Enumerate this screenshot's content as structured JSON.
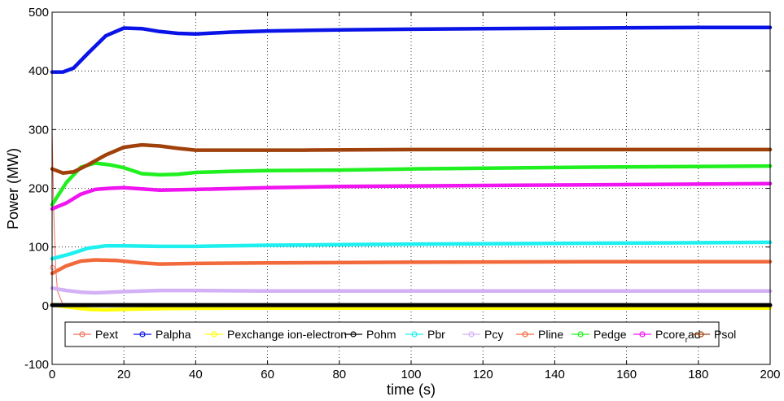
{
  "chart_data": {
    "type": "line",
    "title": "",
    "xlabel": "time (s)",
    "ylabel": "Power (MW)",
    "xlim": [
      0,
      200
    ],
    "ylim": [
      -100,
      500
    ],
    "xticks": [
      "0",
      "20",
      "40",
      "60",
      "80",
      "100",
      "120",
      "140",
      "160",
      "180",
      "200"
    ],
    "yticks": [
      "-100",
      "0",
      "100",
      "200",
      "300",
      "400",
      "500"
    ],
    "grid": true,
    "legend_position": "bottom",
    "series": [
      {
        "name": "Pext",
        "color": "#f0705a",
        "points": [
          [
            0,
            300
          ],
          [
            0.5,
            150
          ],
          [
            1,
            65
          ],
          [
            1.5,
            25
          ],
          [
            3,
            2
          ],
          [
            6,
            0
          ],
          [
            200,
            0
          ]
        ]
      },
      {
        "name": "Palpha",
        "color": "#0a14e6",
        "points": [
          [
            0,
            398
          ],
          [
            3,
            398
          ],
          [
            6,
            405
          ],
          [
            10,
            430
          ],
          [
            15,
            460
          ],
          [
            20,
            473
          ],
          [
            25,
            472
          ],
          [
            30,
            467
          ],
          [
            35,
            464
          ],
          [
            40,
            463
          ],
          [
            50,
            466
          ],
          [
            60,
            468
          ],
          [
            80,
            470
          ],
          [
            100,
            471
          ],
          [
            120,
            472
          ],
          [
            150,
            473
          ],
          [
            180,
            474
          ],
          [
            200,
            474
          ]
        ]
      },
      {
        "name": "Pexchange ion-electron",
        "color": "#ffff00",
        "points": [
          [
            0,
            2
          ],
          [
            4,
            -2
          ],
          [
            10,
            -6
          ],
          [
            15,
            -7
          ],
          [
            20,
            -6
          ],
          [
            30,
            -5
          ],
          [
            50,
            -4
          ],
          [
            100,
            -4
          ],
          [
            200,
            -4
          ]
        ]
      },
      {
        "name": "Pohm",
        "color": "#000000",
        "points": [
          [
            0,
            1
          ],
          [
            50,
            1
          ],
          [
            100,
            1
          ],
          [
            200,
            1
          ]
        ]
      },
      {
        "name": "Pbr",
        "color": "#1ef0f0",
        "points": [
          [
            0,
            80
          ],
          [
            5,
            88
          ],
          [
            10,
            98
          ],
          [
            15,
            102
          ],
          [
            20,
            102
          ],
          [
            30,
            101
          ],
          [
            40,
            101
          ],
          [
            60,
            103
          ],
          [
            80,
            104
          ],
          [
            100,
            105
          ],
          [
            140,
            106
          ],
          [
            200,
            108
          ]
        ]
      },
      {
        "name": "Pcy",
        "color": "#d4b0f6",
        "points": [
          [
            0,
            30
          ],
          [
            4,
            26
          ],
          [
            8,
            23
          ],
          [
            12,
            22
          ],
          [
            20,
            24
          ],
          [
            30,
            26
          ],
          [
            40,
            26
          ],
          [
            60,
            25
          ],
          [
            100,
            25
          ],
          [
            200,
            25
          ]
        ]
      },
      {
        "name": "Pline",
        "color": "#f26a3c",
        "points": [
          [
            0,
            55
          ],
          [
            4,
            68
          ],
          [
            8,
            76
          ],
          [
            12,
            78
          ],
          [
            18,
            77
          ],
          [
            25,
            73
          ],
          [
            30,
            71
          ],
          [
            40,
            72
          ],
          [
            60,
            73
          ],
          [
            100,
            74
          ],
          [
            150,
            75
          ],
          [
            200,
            75
          ]
        ]
      },
      {
        "name": "Pedge",
        "color": "#20f020",
        "points": [
          [
            0,
            172
          ],
          [
            4,
            210
          ],
          [
            8,
            236
          ],
          [
            12,
            243
          ],
          [
            16,
            240
          ],
          [
            20,
            235
          ],
          [
            25,
            225
          ],
          [
            30,
            223
          ],
          [
            35,
            224
          ],
          [
            40,
            227
          ],
          [
            50,
            229
          ],
          [
            60,
            230
          ],
          [
            80,
            231
          ],
          [
            100,
            233
          ],
          [
            150,
            236
          ],
          [
            200,
            238
          ]
        ]
      },
      {
        "name": "Pcore_rad",
        "color": "#f014f0",
        "points": [
          [
            0,
            165
          ],
          [
            4,
            175
          ],
          [
            8,
            190
          ],
          [
            12,
            198
          ],
          [
            16,
            200
          ],
          [
            20,
            201
          ],
          [
            25,
            199
          ],
          [
            30,
            197
          ],
          [
            40,
            198
          ],
          [
            60,
            201
          ],
          [
            80,
            203
          ],
          [
            100,
            204
          ],
          [
            150,
            206
          ],
          [
            200,
            208
          ]
        ]
      },
      {
        "name": "Psol",
        "color": "#a0400a",
        "points": [
          [
            0,
            233
          ],
          [
            3,
            226
          ],
          [
            6,
            228
          ],
          [
            10,
            240
          ],
          [
            15,
            257
          ],
          [
            20,
            270
          ],
          [
            25,
            274
          ],
          [
            30,
            272
          ],
          [
            35,
            268
          ],
          [
            40,
            265
          ],
          [
            50,
            265
          ],
          [
            70,
            265
          ],
          [
            100,
            266
          ],
          [
            150,
            266
          ],
          [
            200,
            266
          ]
        ]
      }
    ]
  },
  "legend": {
    "items": [
      {
        "label": "Pext",
        "color": "#f0705a"
      },
      {
        "label": "Palpha",
        "color": "#0a14e6"
      },
      {
        "label": "Pexchange ion-electron",
        "color": "#ffff00"
      },
      {
        "label": "Pohm",
        "color": "#000000"
      },
      {
        "label": "Pbr",
        "color": "#1ef0f0"
      },
      {
        "label": "Pcy",
        "color": "#d4b0f6"
      },
      {
        "label": "Pline",
        "color": "#f26a3c"
      },
      {
        "label": "Pedge",
        "color": "#20f020"
      },
      {
        "label": "Pcore",
        "sub": "r",
        "suffix": "ad",
        "color": "#f014f0"
      },
      {
        "label": "Psol",
        "color": "#a0400a"
      }
    ]
  }
}
